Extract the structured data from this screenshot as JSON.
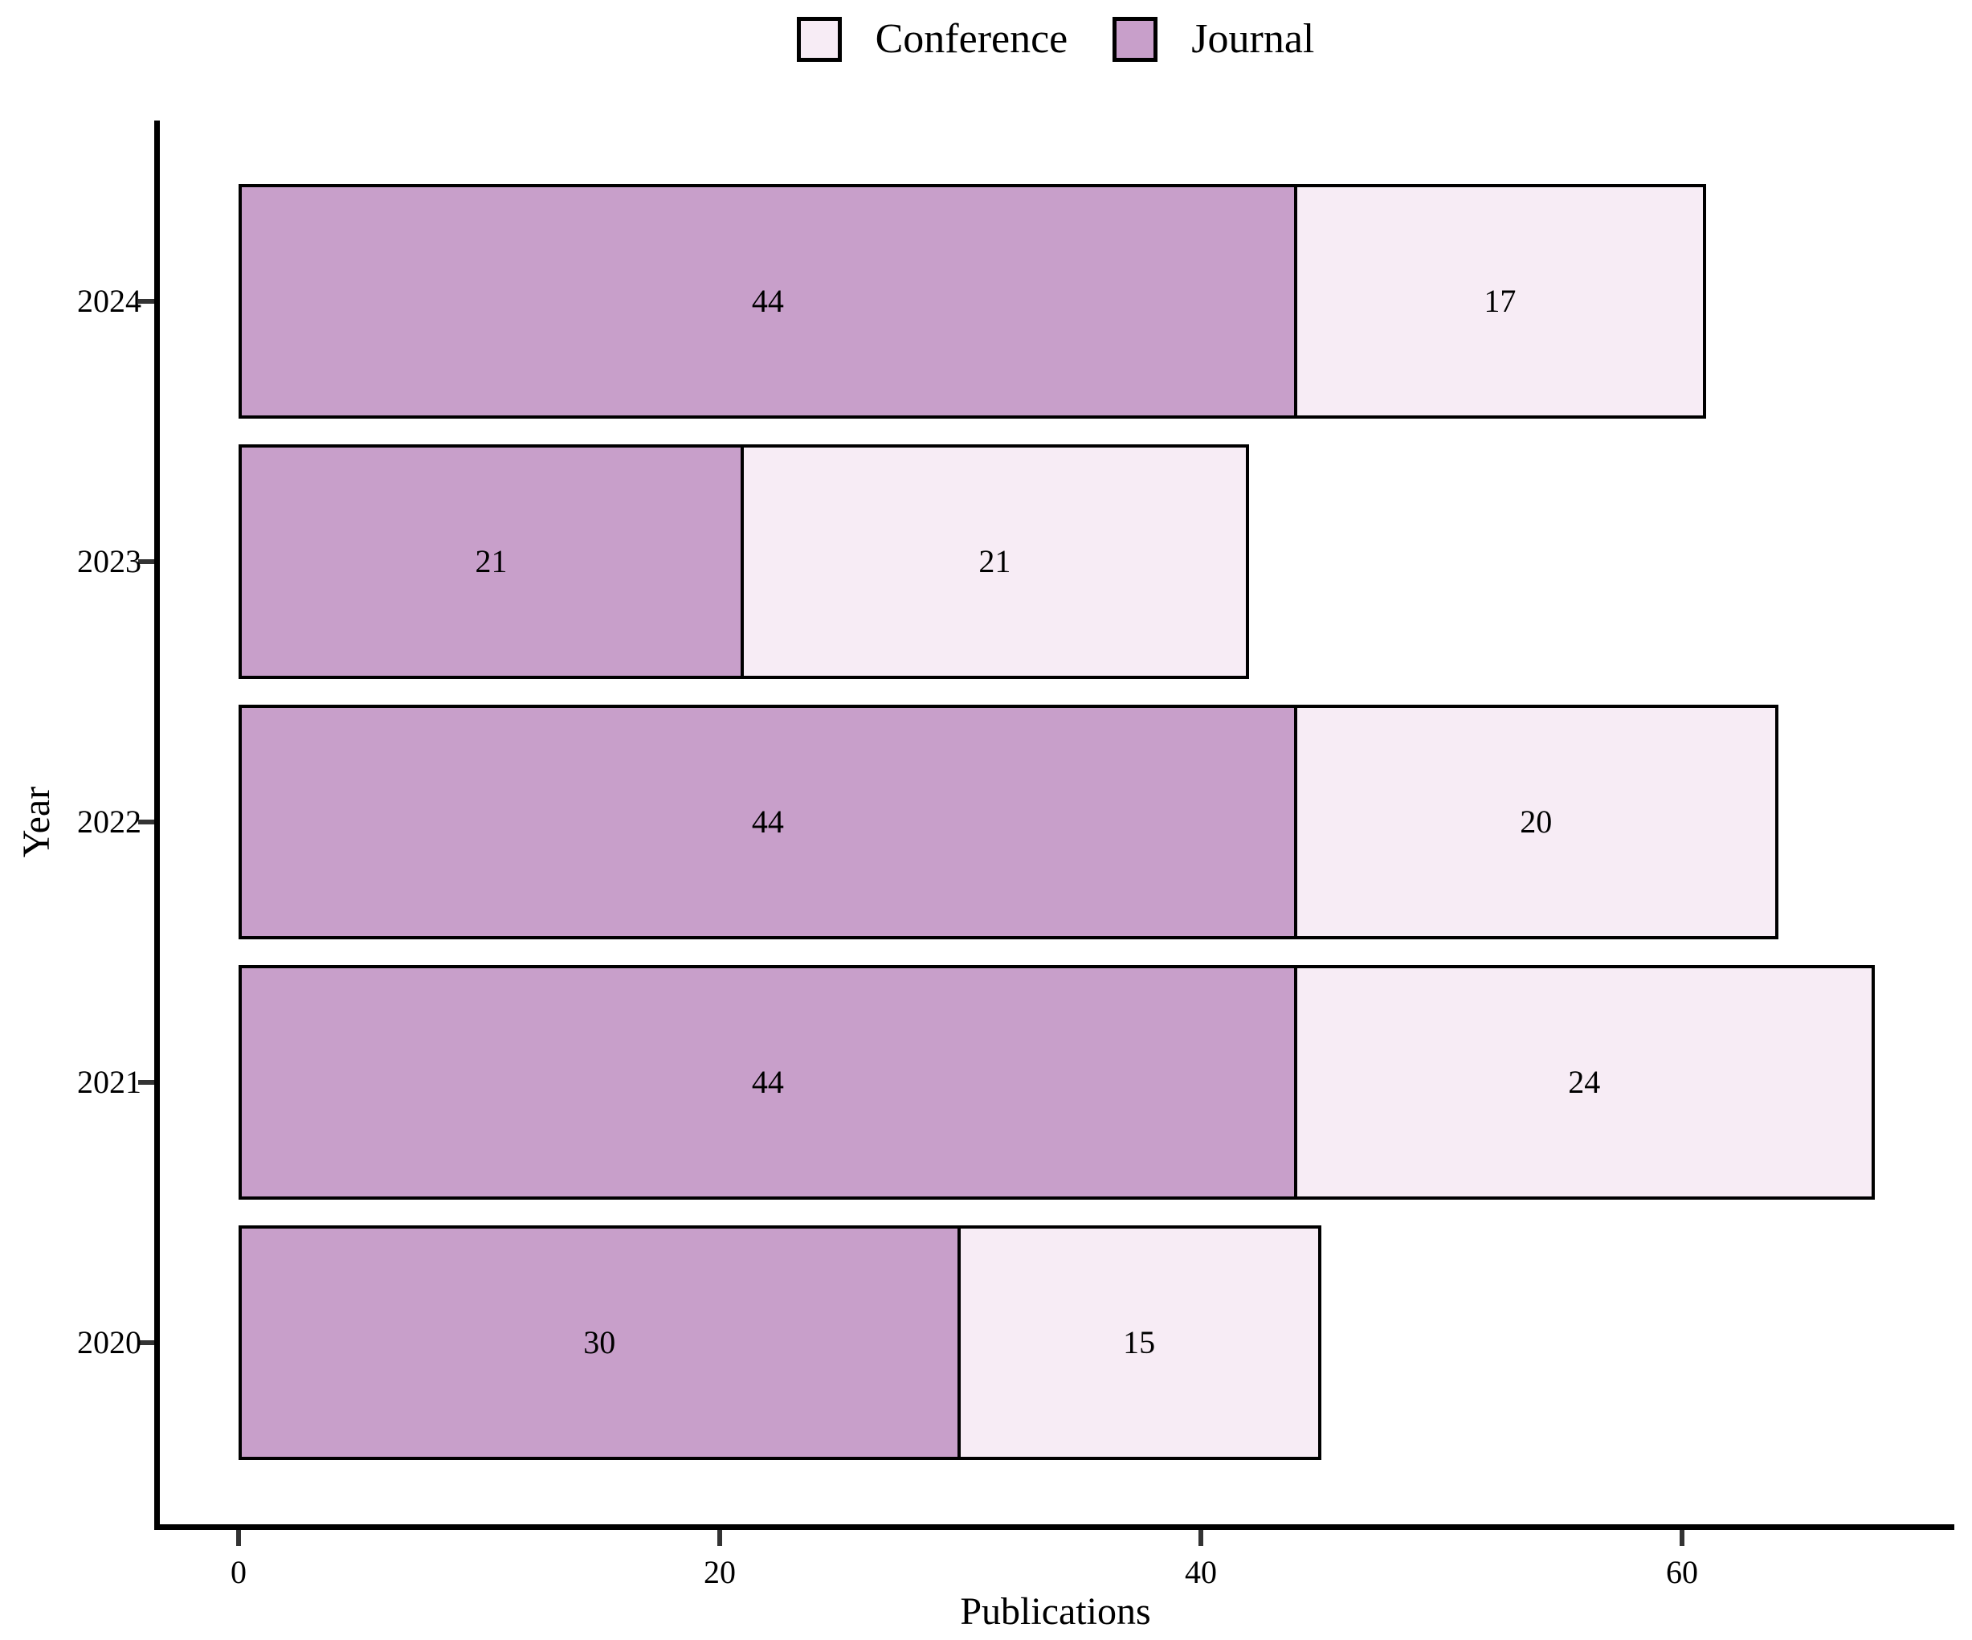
{
  "legend": {
    "items": [
      {
        "label": "Conference",
        "color": "#f7ecf5"
      },
      {
        "label": "Journal",
        "color": "#c89fca"
      }
    ]
  },
  "chart_data": {
    "type": "bar",
    "orientation": "horizontal",
    "stacked": true,
    "title": "",
    "xlabel": "Publications",
    "ylabel": "Year",
    "categories": [
      "2024",
      "2023",
      "2022",
      "2021",
      "2020"
    ],
    "series": [
      {
        "name": "Journal",
        "color": "#c89fca",
        "values": [
          44,
          21,
          44,
          44,
          30
        ]
      },
      {
        "name": "Conference",
        "color": "#f7ecf5",
        "values": [
          17,
          21,
          20,
          24,
          15
        ]
      }
    ],
    "x_ticks": [
      0,
      20,
      40,
      60
    ],
    "xlim": [
      0,
      71.5
    ],
    "grid": "off",
    "legend_position": "top",
    "bar_border_color": "#000000",
    "tick_color": "#333333",
    "text_color": "#000000"
  }
}
